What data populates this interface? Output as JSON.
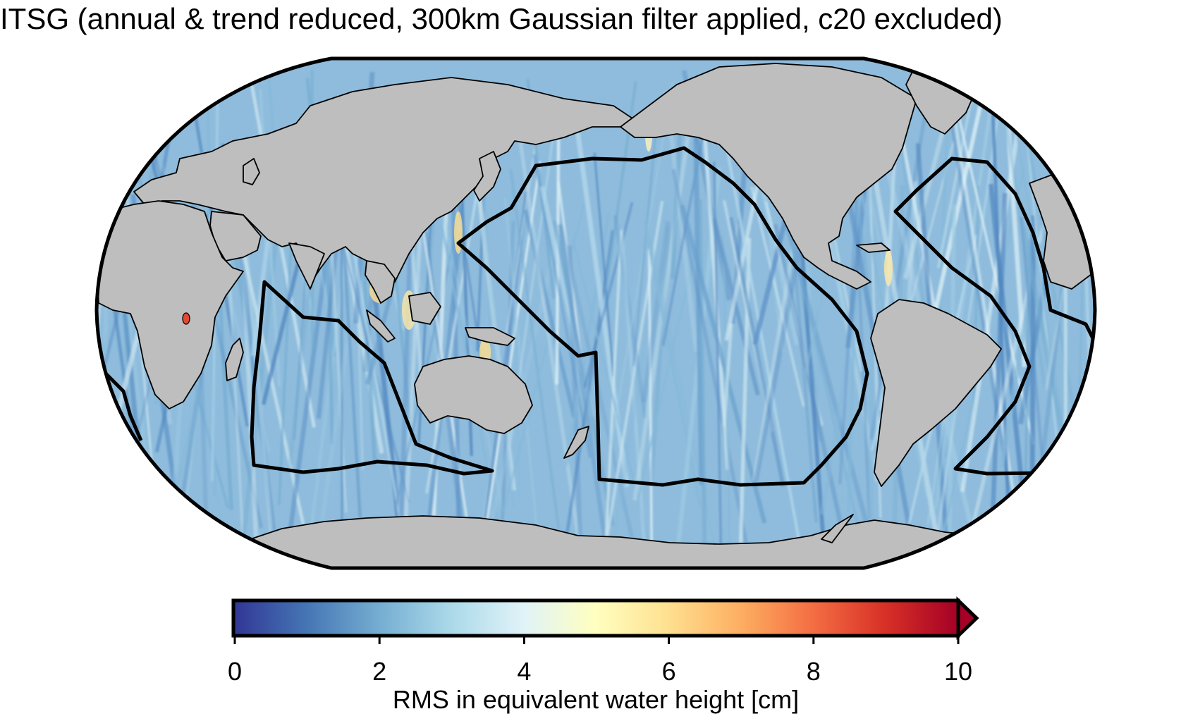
{
  "figure": {
    "title": "ITSG (annual & trend reduced, 300km Gaussian filter applied, c20 excluded)"
  },
  "map": {
    "projection": "Robinson",
    "land_color": "#bebebe",
    "coastline_color": "#000000",
    "field_description": "RMS of residual signal over ocean and land, mostly 1.5-3.5 cm with north-south striping",
    "regions_outlined": 3
  },
  "colorbar": {
    "title": "RMS in equivalent water height [cm]",
    "min": 0,
    "max": 10,
    "extend": "max",
    "ticks": [
      "0",
      "2",
      "4",
      "6",
      "8",
      "10"
    ],
    "colormap": "RdYlBu_r",
    "colors": [
      "#313695",
      "#4575b4",
      "#74add1",
      "#abd9e9",
      "#e0f3f8",
      "#ffffbf",
      "#fee090",
      "#fdae61",
      "#f46d43",
      "#d73027",
      "#a50026"
    ]
  }
}
